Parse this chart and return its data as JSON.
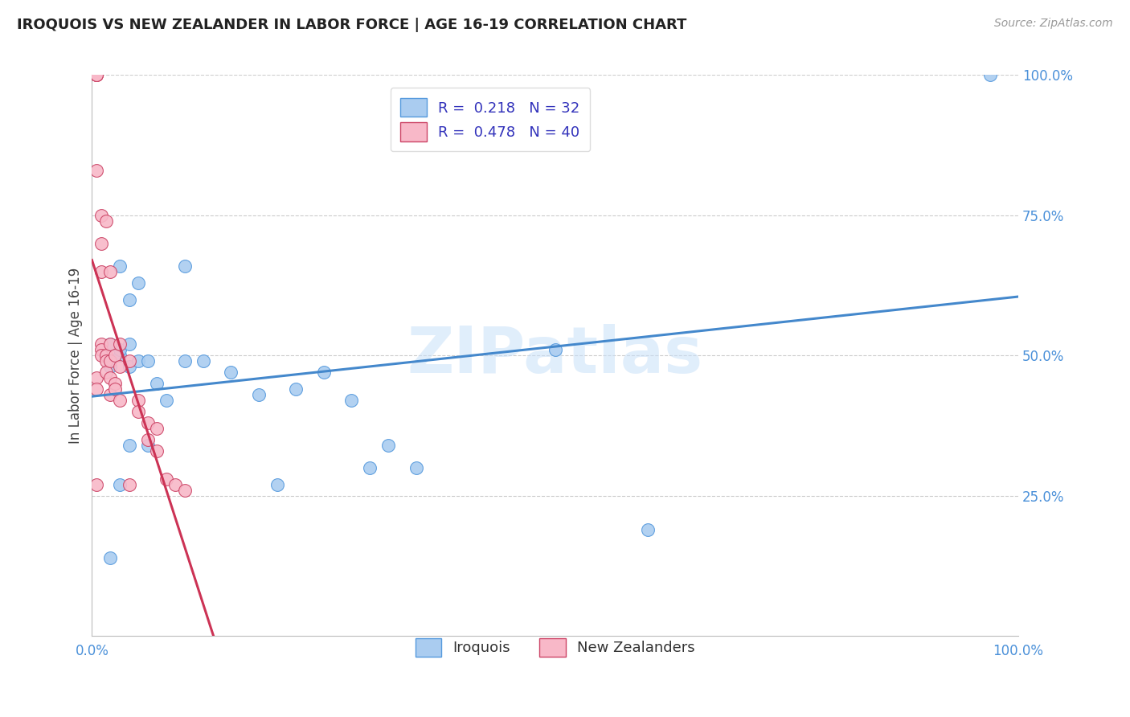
{
  "title": "IROQUOIS VS NEW ZEALANDER IN LABOR FORCE | AGE 16-19 CORRELATION CHART",
  "source": "Source: ZipAtlas.com",
  "ylabel": "In Labor Force | Age 16-19",
  "xlim": [
    0.0,
    1.0
  ],
  "ylim": [
    0.0,
    1.0
  ],
  "ytick_positions": [
    0.25,
    0.5,
    0.75,
    1.0
  ],
  "grid_color": "#cccccc",
  "background_color": "#ffffff",
  "tick_color": "#4a90d9",
  "watermark_text": "ZIPatlas",
  "watermark_color": "#c8e0f8",
  "series": [
    {
      "name": "Iroquois",
      "color": "#aaccf0",
      "edge_color": "#5599dd",
      "line_color": "#4488cc",
      "R": 0.218,
      "N": 32,
      "points_x": [
        0.02,
        0.02,
        0.02,
        0.03,
        0.03,
        0.03,
        0.04,
        0.04,
        0.04,
        0.05,
        0.05,
        0.06,
        0.07,
        0.08,
        0.1,
        0.1,
        0.12,
        0.15,
        0.18,
        0.2,
        0.22,
        0.25,
        0.28,
        0.3,
        0.32,
        0.35,
        0.5,
        0.6,
        0.97,
        0.03,
        0.04,
        0.06
      ],
      "points_y": [
        0.52,
        0.48,
        0.14,
        0.5,
        0.51,
        0.66,
        0.52,
        0.48,
        0.6,
        0.63,
        0.49,
        0.49,
        0.45,
        0.42,
        0.66,
        0.49,
        0.49,
        0.47,
        0.43,
        0.27,
        0.44,
        0.47,
        0.42,
        0.3,
        0.34,
        0.3,
        0.51,
        0.19,
        1.0,
        0.27,
        0.34,
        0.34
      ]
    },
    {
      "name": "New Zealanders",
      "color": "#f8b8c8",
      "edge_color": "#cc4466",
      "line_color": "#cc3355",
      "R": 0.478,
      "N": 40,
      "points_x": [
        0.005,
        0.005,
        0.005,
        0.005,
        0.005,
        0.005,
        0.005,
        0.005,
        0.01,
        0.01,
        0.01,
        0.01,
        0.01,
        0.01,
        0.015,
        0.015,
        0.015,
        0.015,
        0.02,
        0.02,
        0.02,
        0.02,
        0.02,
        0.025,
        0.025,
        0.025,
        0.03,
        0.03,
        0.03,
        0.04,
        0.04,
        0.05,
        0.05,
        0.06,
        0.06,
        0.07,
        0.07,
        0.08,
        0.09,
        0.1
      ],
      "points_y": [
        1.0,
        1.0,
        1.0,
        1.0,
        0.83,
        0.46,
        0.44,
        0.27,
        0.75,
        0.7,
        0.65,
        0.52,
        0.51,
        0.5,
        0.74,
        0.5,
        0.49,
        0.47,
        0.65,
        0.52,
        0.49,
        0.46,
        0.43,
        0.5,
        0.45,
        0.44,
        0.52,
        0.48,
        0.42,
        0.49,
        0.27,
        0.42,
        0.4,
        0.38,
        0.35,
        0.37,
        0.33,
        0.28,
        0.27,
        0.26
      ]
    }
  ]
}
